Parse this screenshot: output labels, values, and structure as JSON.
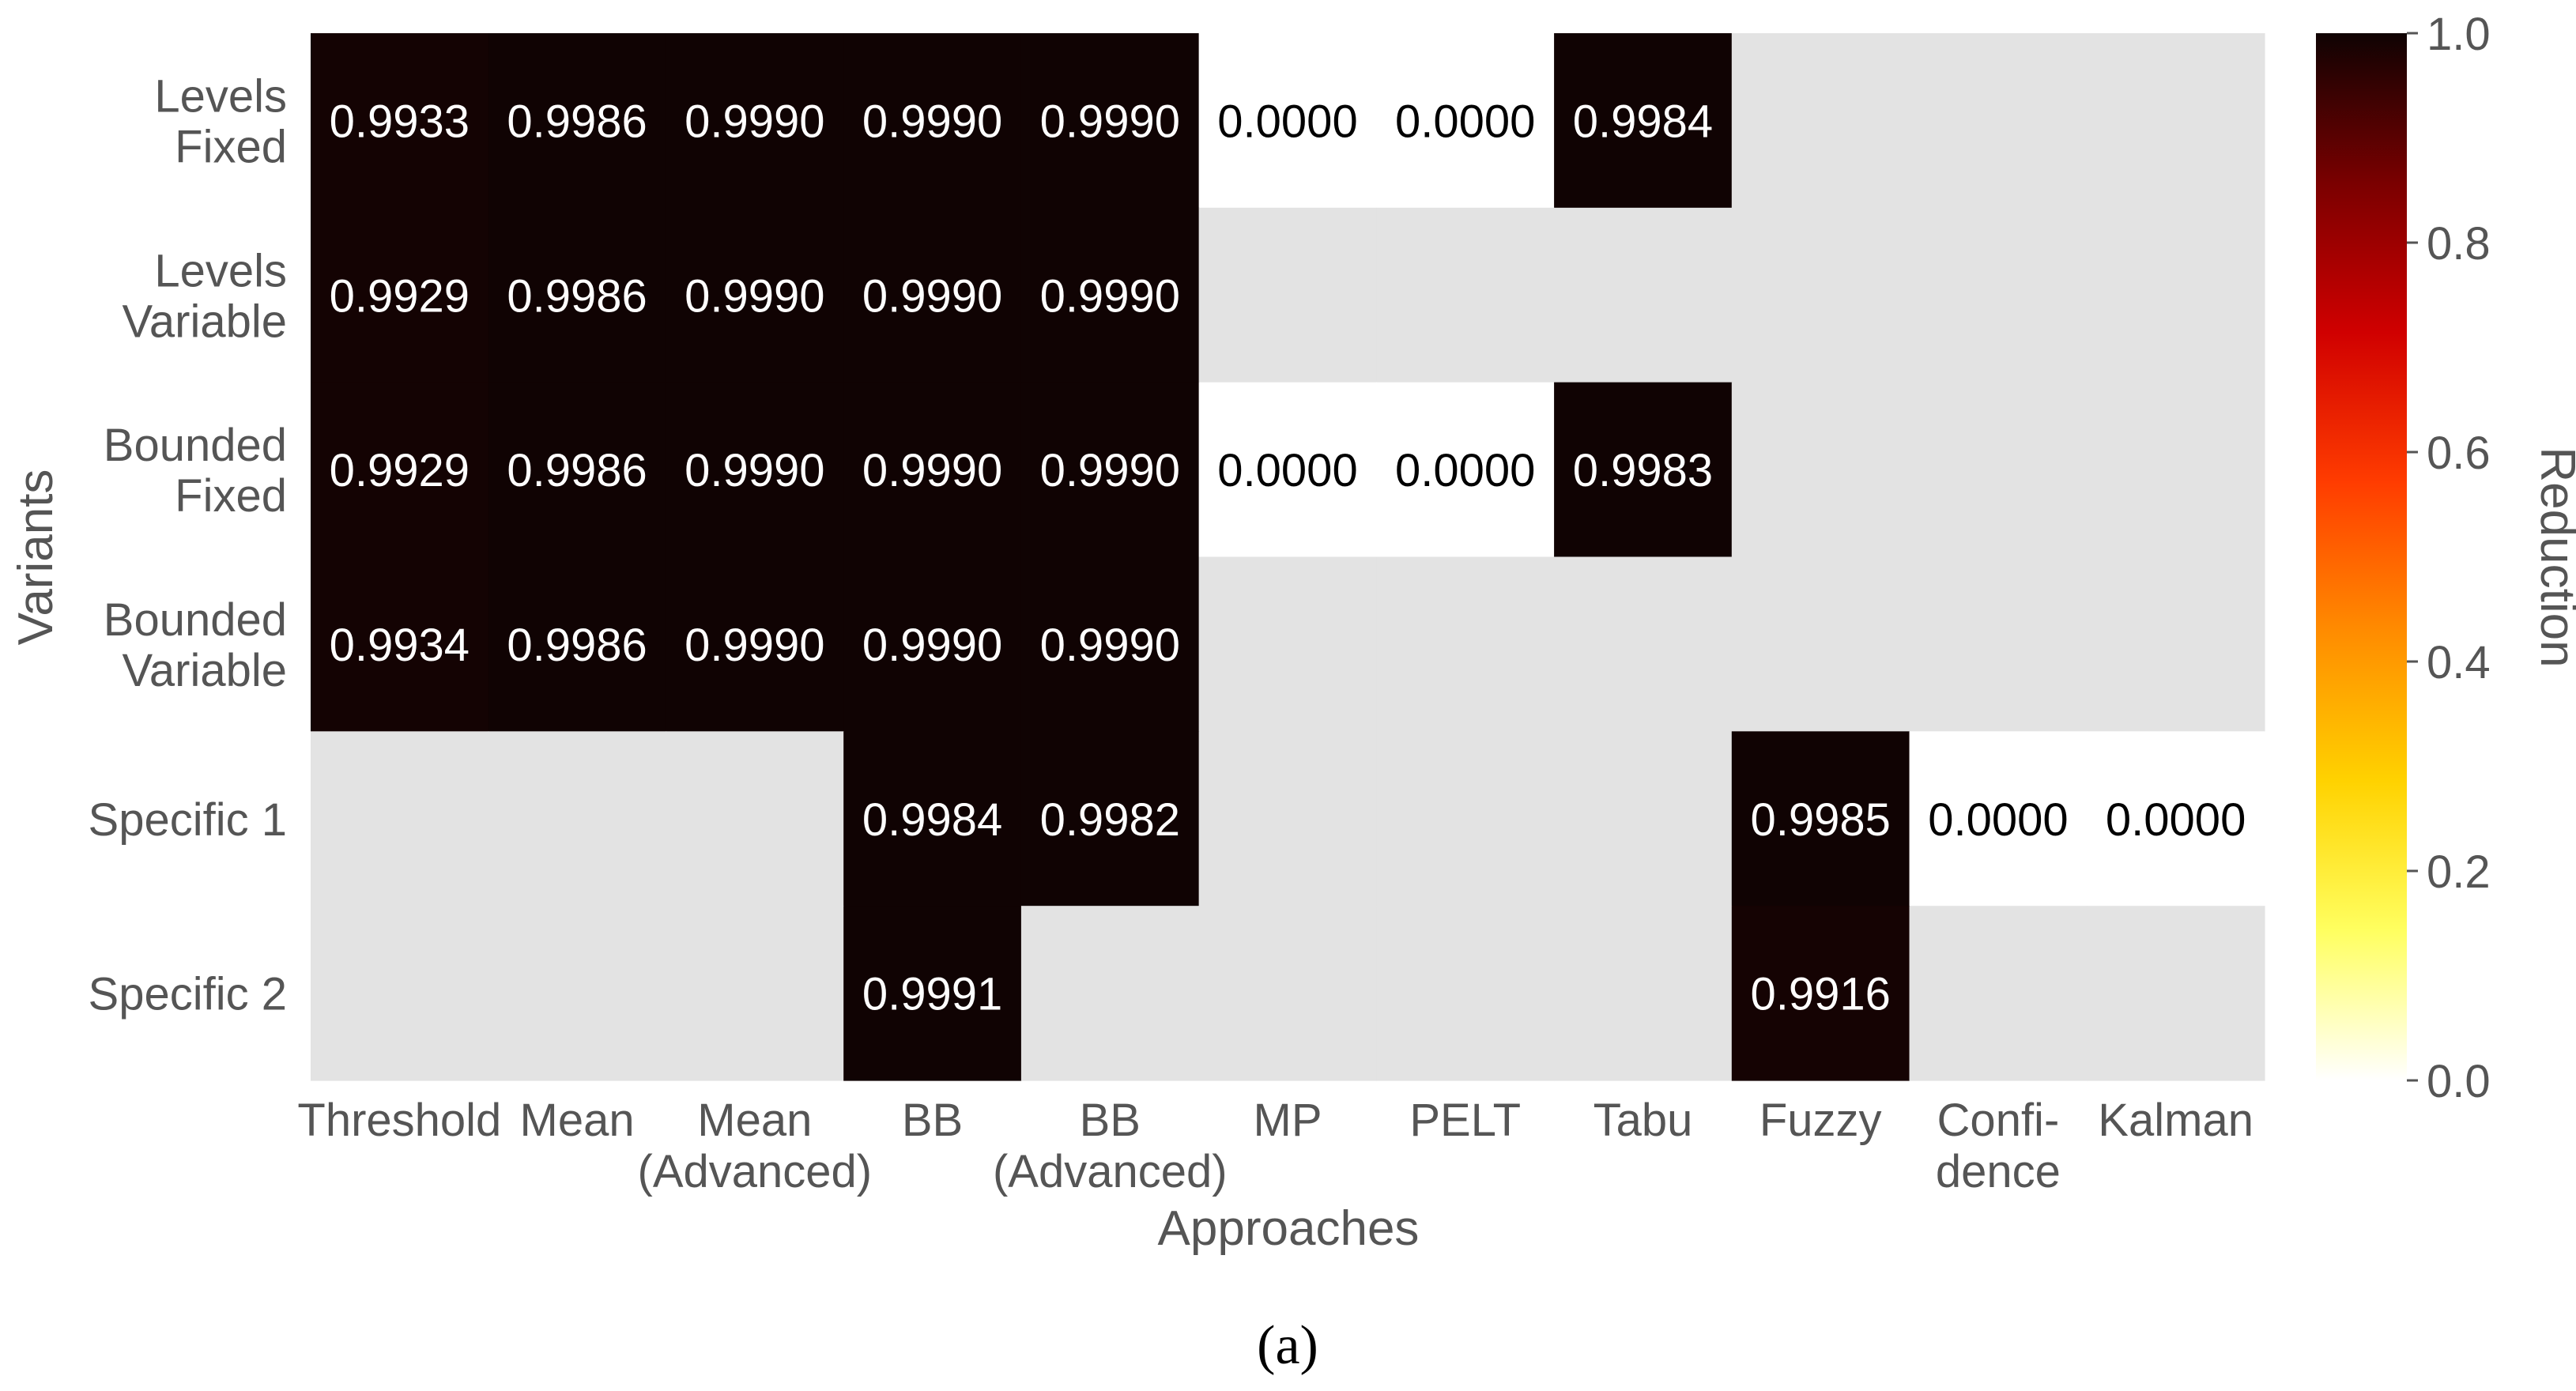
{
  "chart_data": {
    "type": "heatmap",
    "title": "",
    "xlabel": "Approaches",
    "ylabel": "Variants",
    "x_categories": [
      [
        "Threshold"
      ],
      [
        "Mean"
      ],
      [
        "Mean",
        "(Advanced)"
      ],
      [
        "BB"
      ],
      [
        "BB",
        "(Advanced)"
      ],
      [
        "MP"
      ],
      [
        "PELT"
      ],
      [
        "Tabu"
      ],
      [
        "Fuzzy"
      ],
      [
        "Confi-",
        "dence"
      ],
      [
        "Kalman"
      ]
    ],
    "y_categories": [
      [
        "Levels",
        "Fixed"
      ],
      [
        "Levels",
        "Variable"
      ],
      [
        "Bounded",
        "Fixed"
      ],
      [
        "Bounded",
        "Variable"
      ],
      [
        "Specific 1"
      ],
      [
        "Specific 2"
      ]
    ],
    "values": [
      [
        0.9933,
        0.9986,
        0.999,
        0.999,
        0.999,
        0.0,
        0.0,
        0.9984,
        null,
        null,
        null
      ],
      [
        0.9929,
        0.9986,
        0.999,
        0.999,
        0.999,
        null,
        null,
        null,
        null,
        null,
        null
      ],
      [
        0.9929,
        0.9986,
        0.999,
        0.999,
        0.999,
        0.0,
        0.0,
        0.9983,
        null,
        null,
        null
      ],
      [
        0.9934,
        0.9986,
        0.999,
        0.999,
        0.999,
        null,
        null,
        null,
        null,
        null,
        null
      ],
      [
        null,
        null,
        null,
        0.9984,
        0.9982,
        null,
        null,
        null,
        0.9985,
        0.0,
        0.0
      ],
      [
        null,
        null,
        null,
        0.9991,
        null,
        null,
        null,
        null,
        0.9916,
        null,
        null
      ]
    ],
    "value_format_decimals": 4,
    "colorbar": {
      "label": "Reduction",
      "range": [
        0.0,
        1.0
      ],
      "ticks": [
        "0.0",
        "0.2",
        "0.4",
        "0.6",
        "0.8",
        "1.0"
      ],
      "colormap": "hot_r",
      "stops": [
        "#ffffff",
        "#ffff60",
        "#ffd200",
        "#ff8c00",
        "#ff3c00",
        "#d00000",
        "#7a0000",
        "#0f0303"
      ]
    },
    "missing_color": "#e3e3e3",
    "grid": false,
    "legend": "colorbar-right"
  },
  "caption": "(a)"
}
